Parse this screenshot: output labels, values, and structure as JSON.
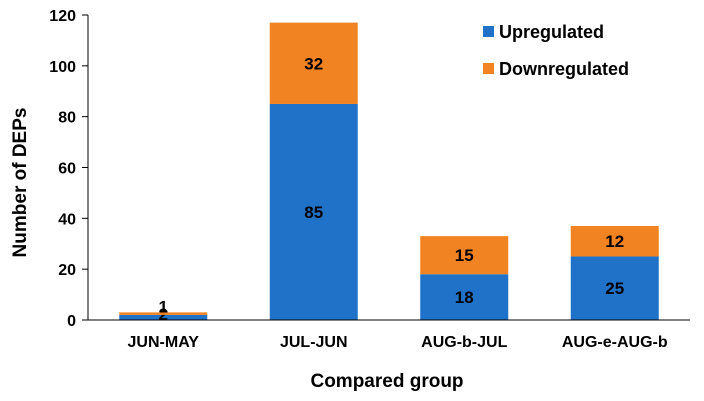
{
  "chart_data": {
    "type": "bar",
    "stacked": true,
    "title": "",
    "xlabel": "Compared group",
    "ylabel": "Number of DEPs",
    "categories": [
      "JUN-MAY",
      "JUL-JUN",
      "AUG-b-JUL",
      "AUG-e-AUG-b"
    ],
    "series": [
      {
        "name": "Upregulated",
        "values": [
          2,
          85,
          18,
          25
        ],
        "color": "#1f72c8"
      },
      {
        "name": "Downregulated",
        "values": [
          1,
          32,
          15,
          12
        ],
        "color": "#f28322"
      }
    ],
    "ylim": [
      0,
      120
    ],
    "yticks": [
      0,
      20,
      40,
      60,
      80,
      100,
      120
    ],
    "grid": false,
    "legend_position": "top-right"
  }
}
